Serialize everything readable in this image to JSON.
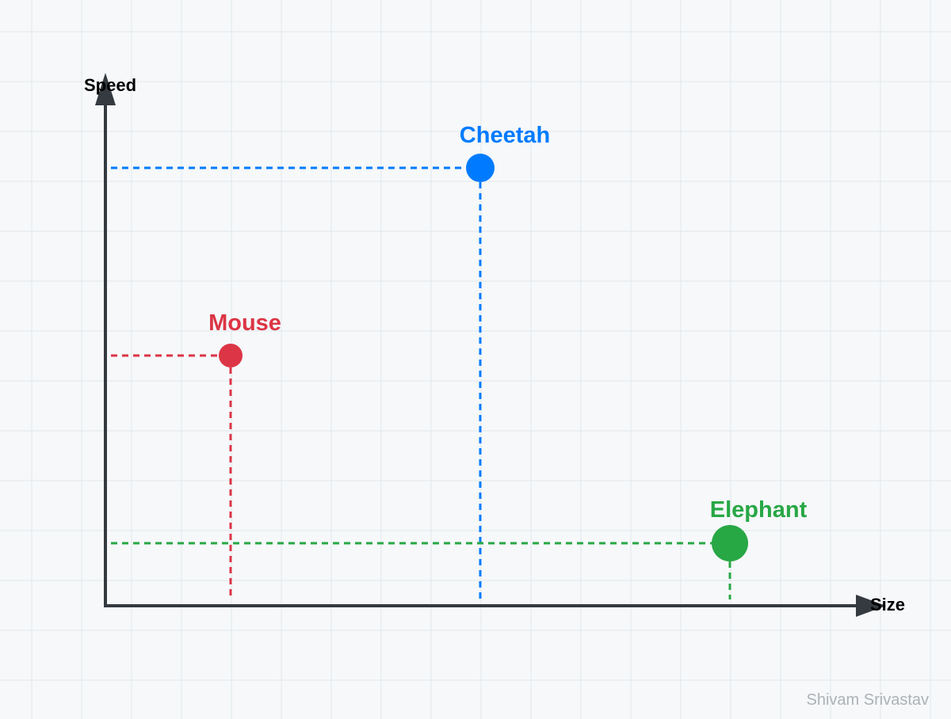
{
  "axes": {
    "y_label": "Speed",
    "x_label": "Size"
  },
  "points": [
    {
      "label": "Cheetah"
    },
    {
      "label": "Mouse"
    },
    {
      "label": "Elephant"
    }
  ],
  "credit": "Shivam Srivastav"
}
